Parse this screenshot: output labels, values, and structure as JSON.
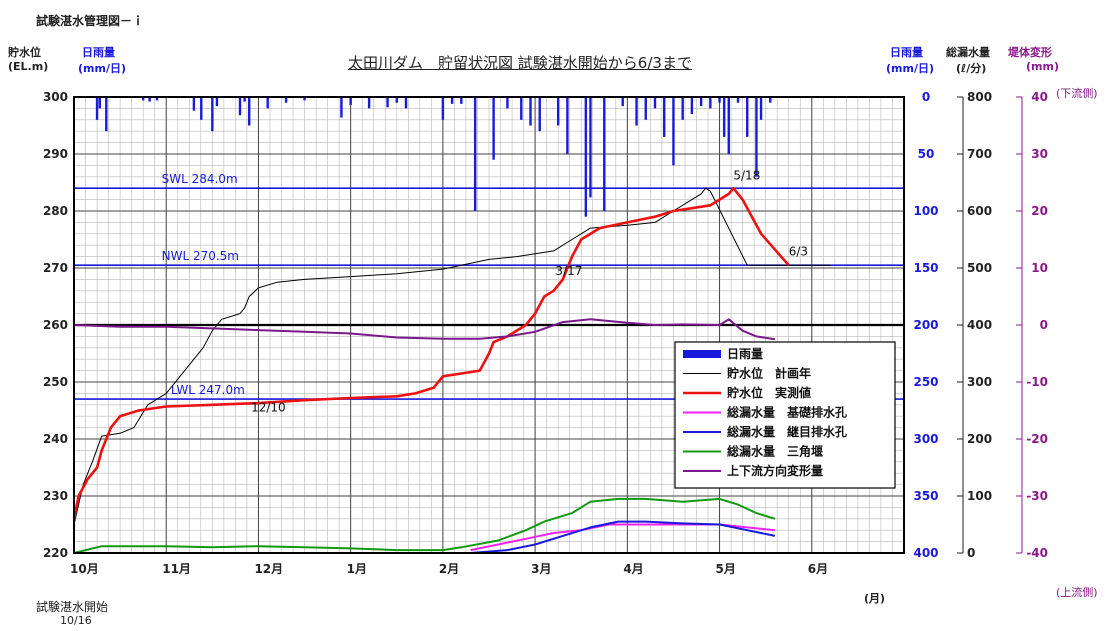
{
  "header": {
    "figure_label": "試験湛水管理図－ｉ",
    "start_label": "試験湛水開始",
    "start_date": "10/16",
    "month_unit": "(月)"
  },
  "axes": {
    "left1": {
      "label": "貯水位",
      "unit": "(EL.m)"
    },
    "left2": {
      "label": "日雨量",
      "unit": "(mm/日)"
    },
    "right1": {
      "label": "日雨量",
      "unit": "(mm/日)"
    },
    "right2": {
      "label": "総漏水量",
      "unit": "(ℓ/分)"
    },
    "right3": {
      "label": "堤体変形",
      "unit": "(mm)"
    },
    "downstream": "(下流側)",
    "upstream": "(上流側)"
  },
  "chart_data": {
    "type": "line",
    "title": "太田川ダム　貯留状況図 試験湛水開始から6/3まで",
    "x_categories": [
      "10月",
      "11月",
      "12月",
      "1月",
      "2月",
      "3月",
      "4月",
      "5月",
      "6月"
    ],
    "y_left_ticks": [
      300,
      290,
      280,
      270,
      260,
      250,
      240,
      230,
      220
    ],
    "y_rain_ticks": [
      0,
      50,
      100,
      150,
      200,
      250,
      300,
      350,
      400
    ],
    "y_leak_ticks": [
      800,
      700,
      600,
      500,
      400,
      300,
      200,
      100,
      0
    ],
    "y_deform_ticks": [
      40,
      30,
      20,
      10,
      0,
      -10,
      -20,
      -30,
      -40
    ],
    "ylim_water": [
      220,
      300
    ],
    "ylim_rain": [
      400,
      0
    ],
    "ylim_leak": [
      0,
      800
    ],
    "ylim_deform": [
      -40,
      40
    ],
    "reference_lines": [
      {
        "label": "SWL 284.0m",
        "value": 284.0
      },
      {
        "label": "NWL 270.5m",
        "value": 270.5
      },
      {
        "label": "LWL 247.0m",
        "value": 247.0
      }
    ],
    "annotations": [
      {
        "text": "5/18",
        "x": 7.15,
        "y": 285.5
      },
      {
        "text": "6/3",
        "x": 7.75,
        "y": 272.2
      },
      {
        "text": "3/17",
        "x": 5.22,
        "y": 268.8
      },
      {
        "text": "12/10",
        "x": 1.92,
        "y": 244.8
      }
    ],
    "legend": [
      {
        "name": "日雨量",
        "color": "#1a1adc",
        "style": "bar"
      },
      {
        "name": "貯水位　計画年",
        "color": "#000000",
        "style": "thin"
      },
      {
        "name": "貯水位　実測値",
        "color": "#ee1111",
        "style": "thick"
      },
      {
        "name": "総漏水量　基礎排水孔",
        "color": "#ee22ee",
        "style": "line"
      },
      {
        "name": "総漏水量　継目排水孔",
        "color": "#1a1adc",
        "style": "line"
      },
      {
        "name": "総漏水量　三角堰",
        "color": "#119911",
        "style": "line"
      },
      {
        "name": "上下流方向変形量",
        "color": "#7a1a8a",
        "style": "line"
      }
    ],
    "series": [
      {
        "name": "貯水位　計画年",
        "axis": "water",
        "color": "#000000",
        "width": 1,
        "points": [
          [
            0,
            225
          ],
          [
            0.1,
            232
          ],
          [
            0.2,
            236
          ],
          [
            0.3,
            240.5
          ],
          [
            0.5,
            241
          ],
          [
            0.65,
            242
          ],
          [
            0.8,
            246
          ],
          [
            1.0,
            248
          ],
          [
            1.2,
            252
          ],
          [
            1.4,
            256
          ],
          [
            1.5,
            259
          ],
          [
            1.6,
            261
          ],
          [
            1.8,
            262
          ],
          [
            1.85,
            263
          ],
          [
            1.9,
            265
          ],
          [
            2.0,
            266.5
          ],
          [
            2.2,
            267.5
          ],
          [
            2.5,
            268
          ],
          [
            3.0,
            268.5
          ],
          [
            3.5,
            269
          ],
          [
            4.0,
            269.8
          ],
          [
            4.2,
            270.5
          ],
          [
            4.5,
            271.5
          ],
          [
            4.8,
            272
          ],
          [
            5.2,
            273
          ],
          [
            5.4,
            275
          ],
          [
            5.6,
            277
          ],
          [
            6.0,
            277.5
          ],
          [
            6.3,
            278
          ],
          [
            6.5,
            280
          ],
          [
            6.7,
            282
          ],
          [
            6.8,
            283
          ],
          [
            6.85,
            284
          ],
          [
            6.9,
            283.5
          ],
          [
            7.3,
            270.5
          ],
          [
            8.2,
            270.5
          ]
        ]
      },
      {
        "name": "貯水位　実測値",
        "axis": "water",
        "color": "#ee1111",
        "width": 2.6,
        "points": [
          [
            0,
            226
          ],
          [
            0.05,
            230
          ],
          [
            0.15,
            233
          ],
          [
            0.25,
            235
          ],
          [
            0.3,
            238
          ],
          [
            0.4,
            242
          ],
          [
            0.5,
            244
          ],
          [
            0.7,
            245
          ],
          [
            1.0,
            245.7
          ],
          [
            1.5,
            246
          ],
          [
            2.0,
            246.3
          ],
          [
            2.5,
            246.8
          ],
          [
            3.0,
            247.2
          ],
          [
            3.5,
            247.5
          ],
          [
            3.7,
            248
          ],
          [
            3.9,
            249
          ],
          [
            4.0,
            251
          ],
          [
            4.2,
            251.5
          ],
          [
            4.4,
            252
          ],
          [
            4.5,
            255
          ],
          [
            4.55,
            257
          ],
          [
            4.7,
            258
          ],
          [
            4.9,
            260
          ],
          [
            5.0,
            262
          ],
          [
            5.1,
            265
          ],
          [
            5.2,
            266
          ],
          [
            5.3,
            268
          ],
          [
            5.4,
            272
          ],
          [
            5.5,
            275
          ],
          [
            5.7,
            277
          ],
          [
            6.0,
            278
          ],
          [
            6.3,
            279
          ],
          [
            6.5,
            280
          ],
          [
            6.7,
            280.5
          ],
          [
            6.9,
            281
          ],
          [
            7.0,
            282
          ],
          [
            7.1,
            283
          ],
          [
            7.15,
            284
          ],
          [
            7.25,
            282
          ],
          [
            7.45,
            276
          ],
          [
            7.75,
            270.5
          ]
        ]
      },
      {
        "name": "総漏水量　三角堰",
        "axis": "leak",
        "color": "#119911",
        "width": 2,
        "points": [
          [
            0,
            0
          ],
          [
            0.3,
            12
          ],
          [
            1.0,
            12
          ],
          [
            1.5,
            10
          ],
          [
            2.0,
            12
          ],
          [
            2.5,
            10
          ],
          [
            3.0,
            8
          ],
          [
            3.5,
            5
          ],
          [
            4.0,
            5
          ],
          [
            4.2,
            10
          ],
          [
            4.6,
            22
          ],
          [
            4.9,
            40
          ],
          [
            5.1,
            55
          ],
          [
            5.4,
            70
          ],
          [
            5.6,
            90
          ],
          [
            5.9,
            95
          ],
          [
            6.2,
            95
          ],
          [
            6.6,
            90
          ],
          [
            7.0,
            95
          ],
          [
            7.2,
            85
          ],
          [
            7.4,
            70
          ],
          [
            7.6,
            60
          ]
        ]
      },
      {
        "name": "総漏水量　基礎排水孔",
        "axis": "leak",
        "color": "#ee22ee",
        "width": 2,
        "points": [
          [
            4.3,
            5
          ],
          [
            4.6,
            15
          ],
          [
            4.9,
            25
          ],
          [
            5.2,
            35
          ],
          [
            5.5,
            40
          ],
          [
            5.8,
            50
          ],
          [
            6.2,
            50
          ],
          [
            6.6,
            50
          ],
          [
            7.0,
            50
          ],
          [
            7.3,
            45
          ],
          [
            7.6,
            40
          ]
        ]
      },
      {
        "name": "総漏水量　継目排水孔",
        "axis": "leak",
        "color": "#1a1adc",
        "width": 2,
        "points": [
          [
            4.3,
            0
          ],
          [
            4.7,
            5
          ],
          [
            5.0,
            15
          ],
          [
            5.3,
            30
          ],
          [
            5.6,
            45
          ],
          [
            5.9,
            55
          ],
          [
            6.2,
            55
          ],
          [
            6.6,
            52
          ],
          [
            7.0,
            50
          ],
          [
            7.3,
            40
          ],
          [
            7.6,
            30
          ]
        ]
      },
      {
        "name": "上下流方向変形量",
        "axis": "deform",
        "color": "#7a1a8a",
        "width": 2,
        "points": [
          [
            0,
            0
          ],
          [
            0.5,
            -0.3
          ],
          [
            1.0,
            -0.3
          ],
          [
            1.5,
            -0.6
          ],
          [
            2.0,
            -0.9
          ],
          [
            2.5,
            -1.2
          ],
          [
            3.0,
            -1.5
          ],
          [
            3.5,
            -2.2
          ],
          [
            4.0,
            -2.4
          ],
          [
            4.4,
            -2.4
          ],
          [
            4.7,
            -2
          ],
          [
            5.0,
            -1.2
          ],
          [
            5.3,
            0.5
          ],
          [
            5.6,
            1
          ],
          [
            6.0,
            0.4
          ],
          [
            6.3,
            0
          ],
          [
            6.6,
            0.1
          ],
          [
            7.0,
            0
          ],
          [
            7.1,
            1
          ],
          [
            7.25,
            -1
          ],
          [
            7.4,
            -2
          ],
          [
            7.6,
            -2.5
          ]
        ]
      }
    ],
    "rain_bars": [
      [
        0.25,
        20
      ],
      [
        0.28,
        10
      ],
      [
        0.35,
        30
      ],
      [
        0.75,
        3
      ],
      [
        0.82,
        4
      ],
      [
        0.9,
        3
      ],
      [
        1.3,
        12
      ],
      [
        1.38,
        20
      ],
      [
        1.5,
        30
      ],
      [
        1.55,
        8
      ],
      [
        1.8,
        16
      ],
      [
        1.85,
        4
      ],
      [
        1.9,
        25
      ],
      [
        2.1,
        10
      ],
      [
        2.3,
        5
      ],
      [
        2.5,
        3
      ],
      [
        2.9,
        18
      ],
      [
        3.0,
        7
      ],
      [
        3.2,
        10
      ],
      [
        3.4,
        9
      ],
      [
        3.5,
        5
      ],
      [
        3.6,
        10
      ],
      [
        4.0,
        20
      ],
      [
        4.1,
        6
      ],
      [
        4.2,
        6
      ],
      [
        4.35,
        100
      ],
      [
        4.55,
        55
      ],
      [
        4.7,
        10
      ],
      [
        4.85,
        20
      ],
      [
        4.95,
        25
      ],
      [
        5.05,
        30
      ],
      [
        5.25,
        25
      ],
      [
        5.35,
        50
      ],
      [
        5.55,
        105
      ],
      [
        5.6,
        88
      ],
      [
        5.75,
        100
      ],
      [
        5.95,
        8
      ],
      [
        6.1,
        25
      ],
      [
        6.2,
        20
      ],
      [
        6.3,
        10
      ],
      [
        6.4,
        35
      ],
      [
        6.5,
        60
      ],
      [
        6.6,
        20
      ],
      [
        6.7,
        15
      ],
      [
        6.8,
        8
      ],
      [
        6.9,
        10
      ],
      [
        7.0,
        5
      ],
      [
        7.05,
        35
      ],
      [
        7.1,
        50
      ],
      [
        7.2,
        5
      ],
      [
        7.3,
        35
      ],
      [
        7.4,
        70
      ],
      [
        7.45,
        20
      ],
      [
        7.55,
        5
      ]
    ]
  }
}
